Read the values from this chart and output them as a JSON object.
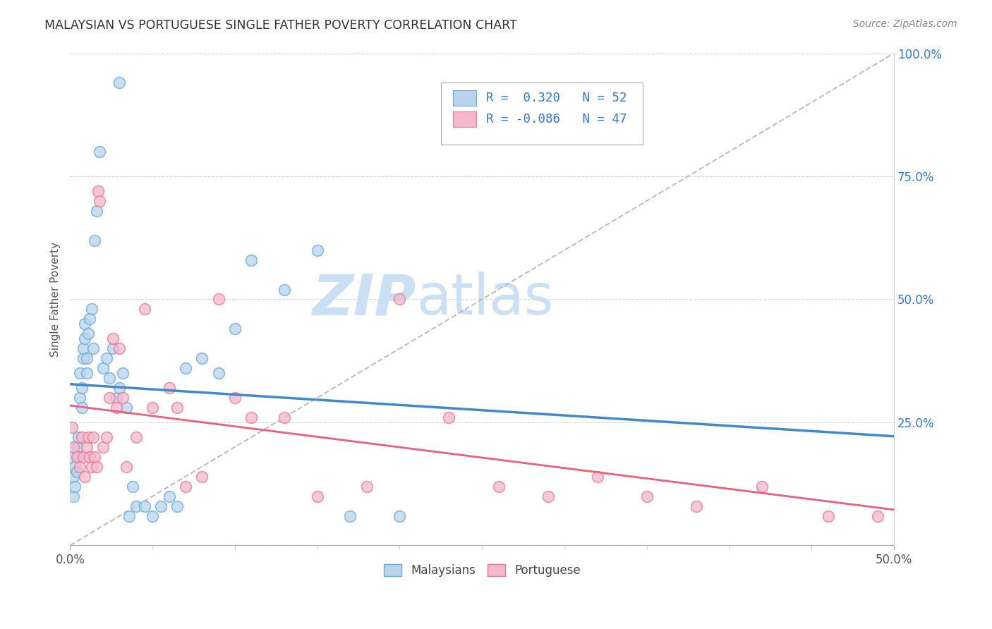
{
  "title": "MALAYSIAN VS PORTUGUESE SINGLE FATHER POVERTY CORRELATION CHART",
  "source": "Source: ZipAtlas.com",
  "ylabel": "Single Father Poverty",
  "xlim": [
    0.0,
    0.5
  ],
  "ylim": [
    0.0,
    1.0
  ],
  "xticks_major": [
    0.0,
    0.5
  ],
  "xticks_minor": [
    0.05,
    0.1,
    0.15,
    0.2,
    0.25,
    0.3,
    0.35,
    0.4,
    0.45
  ],
  "yticks": [
    0.0,
    0.25,
    0.5,
    0.75,
    1.0
  ],
  "xticklabels_major": [
    "0.0%",
    "50.0%"
  ],
  "yticklabels_right": [
    "",
    "25.0%",
    "50.0%",
    "75.0%",
    "100.0%"
  ],
  "malaysian_R": 0.32,
  "malaysian_N": 52,
  "portuguese_R": -0.086,
  "portuguese_N": 47,
  "malaysian_fill": "#b8d4ec",
  "portuguese_fill": "#f4b8cc",
  "malaysian_edge": "#6aaad4",
  "portuguese_edge": "#e87898",
  "malaysian_line_color": "#4488cc",
  "portuguese_line_color": "#e8607a",
  "ref_line_color": "#b8b8b8",
  "background_color": "#ffffff",
  "watermark_color": "#ddeeff",
  "legend_R_color": "#3377cc",
  "malaysian_x": [
    0.001,
    0.002,
    0.002,
    0.003,
    0.003,
    0.004,
    0.004,
    0.005,
    0.005,
    0.006,
    0.006,
    0.007,
    0.007,
    0.008,
    0.008,
    0.009,
    0.009,
    0.01,
    0.01,
    0.011,
    0.012,
    0.013,
    0.014,
    0.015,
    0.016,
    0.018,
    0.02,
    0.022,
    0.024,
    0.026,
    0.028,
    0.03,
    0.032,
    0.034,
    0.036,
    0.038,
    0.04,
    0.045,
    0.05,
    0.055,
    0.06,
    0.065,
    0.07,
    0.08,
    0.09,
    0.1,
    0.11,
    0.13,
    0.15,
    0.17,
    0.2,
    0.03
  ],
  "malaysian_y": [
    0.18,
    0.14,
    0.1,
    0.16,
    0.12,
    0.2,
    0.15,
    0.18,
    0.22,
    0.3,
    0.35,
    0.32,
    0.28,
    0.38,
    0.4,
    0.42,
    0.45,
    0.35,
    0.38,
    0.43,
    0.46,
    0.48,
    0.4,
    0.62,
    0.68,
    0.8,
    0.36,
    0.38,
    0.34,
    0.4,
    0.3,
    0.32,
    0.35,
    0.28,
    0.06,
    0.12,
    0.08,
    0.08,
    0.06,
    0.08,
    0.1,
    0.08,
    0.36,
    0.38,
    0.35,
    0.44,
    0.58,
    0.52,
    0.6,
    0.06,
    0.06,
    0.94
  ],
  "portuguese_x": [
    0.001,
    0.002,
    0.004,
    0.006,
    0.007,
    0.008,
    0.009,
    0.01,
    0.011,
    0.012,
    0.013,
    0.014,
    0.015,
    0.016,
    0.017,
    0.018,
    0.02,
    0.022,
    0.024,
    0.026,
    0.028,
    0.03,
    0.032,
    0.034,
    0.04,
    0.045,
    0.05,
    0.06,
    0.065,
    0.07,
    0.08,
    0.09,
    0.1,
    0.11,
    0.13,
    0.15,
    0.18,
    0.2,
    0.23,
    0.26,
    0.29,
    0.32,
    0.35,
    0.38,
    0.42,
    0.46,
    0.49
  ],
  "portuguese_y": [
    0.24,
    0.2,
    0.18,
    0.16,
    0.22,
    0.18,
    0.14,
    0.2,
    0.22,
    0.18,
    0.16,
    0.22,
    0.18,
    0.16,
    0.72,
    0.7,
    0.2,
    0.22,
    0.3,
    0.42,
    0.28,
    0.4,
    0.3,
    0.16,
    0.22,
    0.48,
    0.28,
    0.32,
    0.28,
    0.12,
    0.14,
    0.5,
    0.3,
    0.26,
    0.26,
    0.1,
    0.12,
    0.5,
    0.26,
    0.12,
    0.1,
    0.14,
    0.1,
    0.08,
    0.12,
    0.06,
    0.06
  ]
}
